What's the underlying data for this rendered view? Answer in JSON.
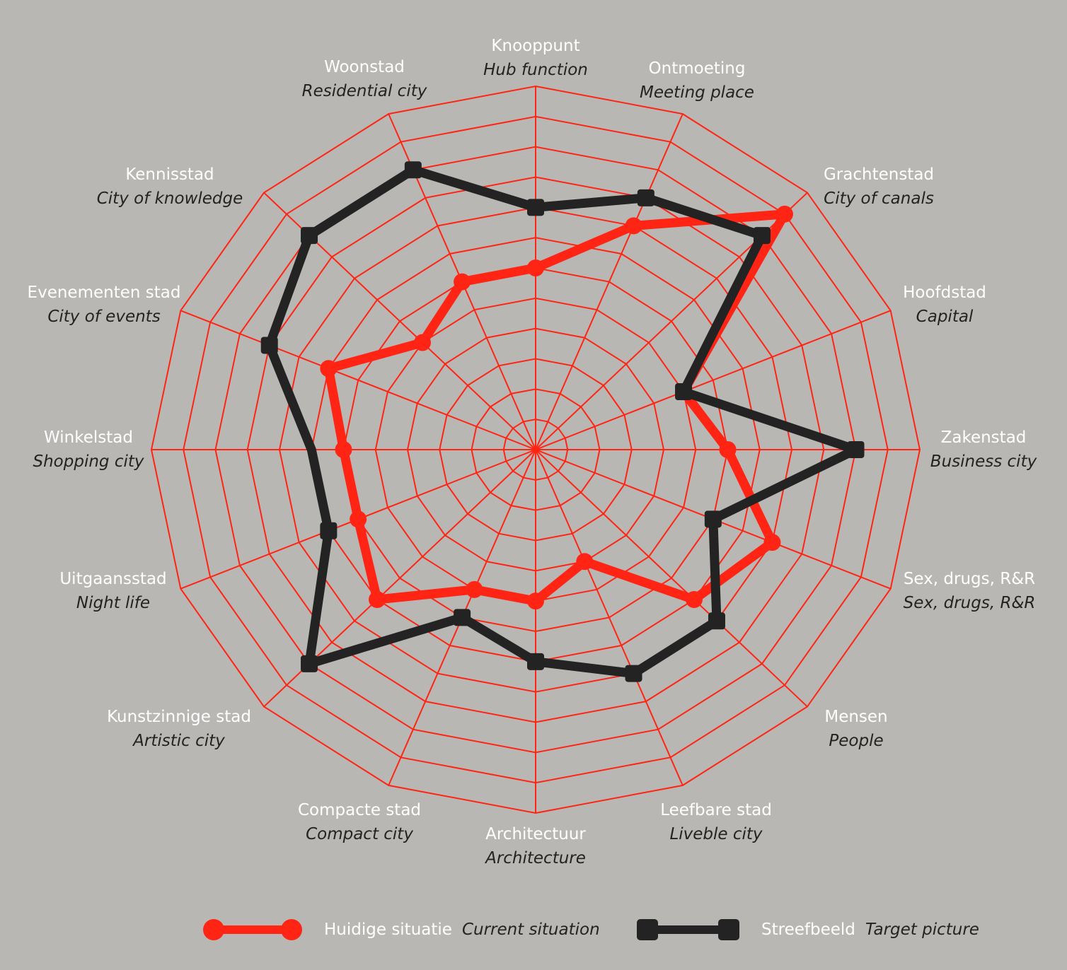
{
  "chart_data": {
    "type": "radar",
    "title": "",
    "scale": {
      "min": 0,
      "max": 12,
      "rings": 12,
      "tick_labels_shown": false
    },
    "grid": true,
    "legend_position": "bottom",
    "axes": [
      {
        "nl": "Knooppunt",
        "en": "Hub function"
      },
      {
        "nl": "Ontmoeting",
        "en": "Meeting place"
      },
      {
        "nl": "Grachtenstad",
        "en": "City of canals"
      },
      {
        "nl": "Hoofdstad",
        "en": "Capital"
      },
      {
        "nl": "Zakenstad",
        "en": "Business city"
      },
      {
        "nl": "Sex, drugs, R&R",
        "en": "Sex, drugs, R&R"
      },
      {
        "nl": "Mensen",
        "en": "People"
      },
      {
        "nl": "Leefbare stad",
        "en": "Liveble city"
      },
      {
        "nl": "Architectuur",
        "en": "Architecture"
      },
      {
        "nl": "Compacte stad",
        "en": "Compact city"
      },
      {
        "nl": "Kunstzinnige stad",
        "en": "Artistic city"
      },
      {
        "nl": "Uitgaansstad",
        "en": "Night life"
      },
      {
        "nl": "Winkelstad",
        "en": "Shopping city"
      },
      {
        "nl": "Evenementen stad",
        "en": "City of events"
      },
      {
        "nl": "Kennisstad",
        "en": "City of knowledge"
      },
      {
        "nl": "Woonstad",
        "en": "Residential city"
      }
    ],
    "series": [
      {
        "name": "Huidige situatie",
        "name_en": "Current situation",
        "color": "#ff2414",
        "marker": "circle",
        "values": [
          6,
          8,
          11,
          5,
          6,
          8,
          7,
          4,
          5,
          5,
          7,
          6,
          6,
          7,
          5,
          6
        ],
        "hidden_markers": [
          3
        ]
      },
      {
        "name": "Streefbeeld",
        "name_en": "Target picture",
        "color": "#232323",
        "marker": "square",
        "values": [
          8,
          9,
          10,
          5,
          10,
          6,
          8,
          8,
          7,
          6,
          10,
          7,
          7,
          9,
          10,
          10
        ],
        "hidden_markers": [
          12
        ]
      }
    ]
  },
  "colors": {
    "background": "#b9b7b3",
    "grid": "#ff2414",
    "label_nl": "#ffffff",
    "label_en": "#232323"
  },
  "legend": [
    {
      "nl": "Huidige situatie",
      "en": "Current situation"
    },
    {
      "nl": "Streefbeeld",
      "en": "Target picture"
    }
  ]
}
